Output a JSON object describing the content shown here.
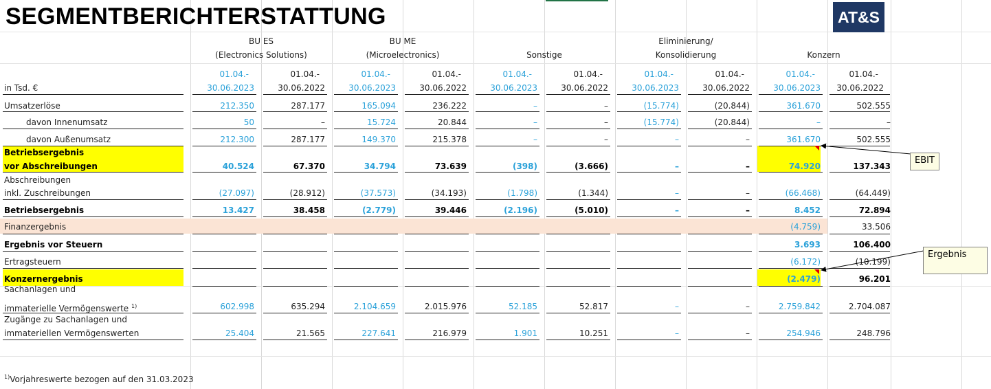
{
  "title": "SEGMENTBERICHTERSTATTUNG",
  "logo": "AT&S",
  "unit_label": "in Tsd. €",
  "segments": [
    {
      "line1": "BU ES",
      "line2": "(Electronics Solutions)"
    },
    {
      "line1": "BU ME",
      "line2": "(Microelectronics)"
    },
    {
      "line1": "",
      "line2": "Sonstige"
    },
    {
      "line1": "Eliminierung/",
      "line2": "Konsolidierung"
    },
    {
      "line1": "",
      "line2": "Konzern"
    }
  ],
  "periods": {
    "current_1": "01.04.-",
    "current_2": "30.06.2023",
    "prior_1": "01.04.-",
    "prior_2": "30.06.2022"
  },
  "rows": [
    {
      "label": "Umsatzerlöse",
      "values": [
        "212.350",
        "287.177",
        "165.094",
        "236.222",
        "–",
        "–",
        "(15.774)",
        "(20.844)",
        "361.670",
        "502.555"
      ]
    },
    {
      "label": "davon Innenumsatz",
      "values": [
        "50",
        "–",
        "15.724",
        "20.844",
        "–",
        "–",
        "(15.774)",
        "(20.844)",
        "–",
        "–"
      ]
    },
    {
      "label": "davon Außenumsatz",
      "values": [
        "212.300",
        "287.177",
        "149.370",
        "215.378",
        "–",
        "–",
        "–",
        "–",
        "361.670",
        "502.555"
      ]
    },
    {
      "label_1": "Betriebsergebnis",
      "label_2": "vor Abschreibungen",
      "values": [
        "40.524",
        "67.370",
        "34.794",
        "73.639",
        "(398)",
        "(3.666)",
        "–",
        "–",
        "74.920",
        "137.343"
      ]
    },
    {
      "label_1": "Abschreibungen",
      "label_2": "inkl. Zuschreibungen",
      "values": [
        "(27.097)",
        "(28.912)",
        "(37.573)",
        "(34.193)",
        "(1.798)",
        "(1.344)",
        "–",
        "–",
        "(66.468)",
        "(64.449)"
      ]
    },
    {
      "label": "Betriebsergebnis",
      "values": [
        "13.427",
        "38.458",
        "(2.779)",
        "39.446",
        "(2.196)",
        "(5.010)",
        "–",
        "–",
        "8.452",
        "72.894"
      ]
    },
    {
      "label": "Finanzergebnis",
      "values": [
        "(4.759)",
        "33.506"
      ]
    },
    {
      "label": "Ergebnis vor Steuern",
      "values": [
        "3.693",
        "106.400"
      ]
    },
    {
      "label": "Ertragsteuern",
      "values": [
        "(6.172)",
        "(10.199)"
      ]
    },
    {
      "label": "Konzernergebnis",
      "values": [
        "(2.479)",
        "96.201"
      ]
    },
    {
      "label_1": "Sachanlagen und",
      "label_2": "immaterielle Vermögenswerte",
      "sup": "1)",
      "values": [
        "602.998",
        "635.294",
        "2.104.659",
        "2.015.976",
        "52.185",
        "52.817",
        "–",
        "–",
        "2.759.842",
        "2.704.087"
      ]
    },
    {
      "label_1": "Zugänge zu Sachanlagen und",
      "label_2": "immateriellen Vermögenswerten",
      "values": [
        "25.404",
        "21.565",
        "227.641",
        "216.979",
        "1.901",
        "10.251",
        "–",
        "–",
        "254.946",
        "248.796"
      ]
    }
  ],
  "comments": {
    "ebit": "EBIT",
    "ergebnis": "Ergebnis"
  },
  "footnote": {
    "mark": "1)",
    "text": "Vorjahreswerte bezogen auf den 31.03.2023"
  },
  "colors": {
    "current": "#2aa1d9",
    "highlight": "#ffff00",
    "finanz": "#fbe4d5",
    "logo_bg": "#1f3864"
  }
}
